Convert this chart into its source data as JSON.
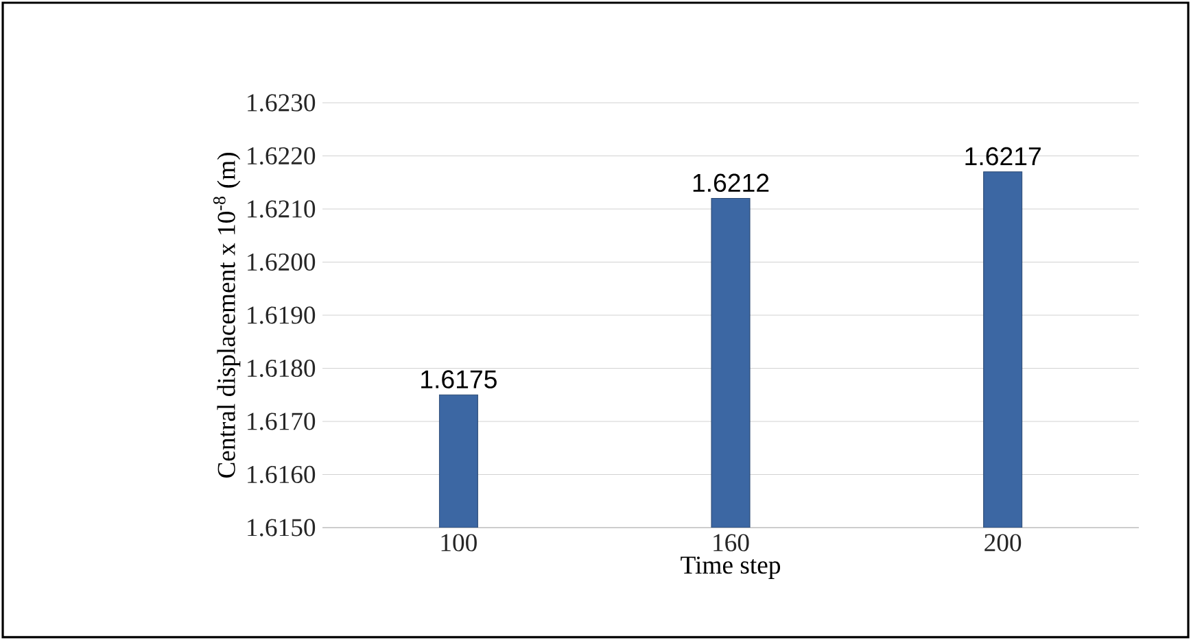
{
  "chart_data": {
    "type": "bar",
    "xlabel": "Time step",
    "ylabel": "Central displacement x 10$^{-8}$ (m)",
    "categories": [
      "100",
      "160",
      "200"
    ],
    "values": [
      1.6175,
      1.6212,
      1.6217
    ],
    "color": "#3c67a3",
    "ylim": [
      1.615,
      1.623
    ],
    "yticks": [
      {
        "value": 1.615,
        "label": "1.6150"
      },
      {
        "value": 1.616,
        "label": "1.6160"
      },
      {
        "value": 1.617,
        "label": "1.6170"
      },
      {
        "value": 1.618,
        "label": "1.6180"
      },
      {
        "value": 1.619,
        "label": "1.6190"
      },
      {
        "value": 1.62,
        "label": "1.6200"
      },
      {
        "value": 1.621,
        "label": "1.6210"
      },
      {
        "value": 1.622,
        "label": "1.6220"
      },
      {
        "value": 1.623,
        "label": "1.6230"
      }
    ],
    "grid": "y",
    "data_labels": true
  }
}
